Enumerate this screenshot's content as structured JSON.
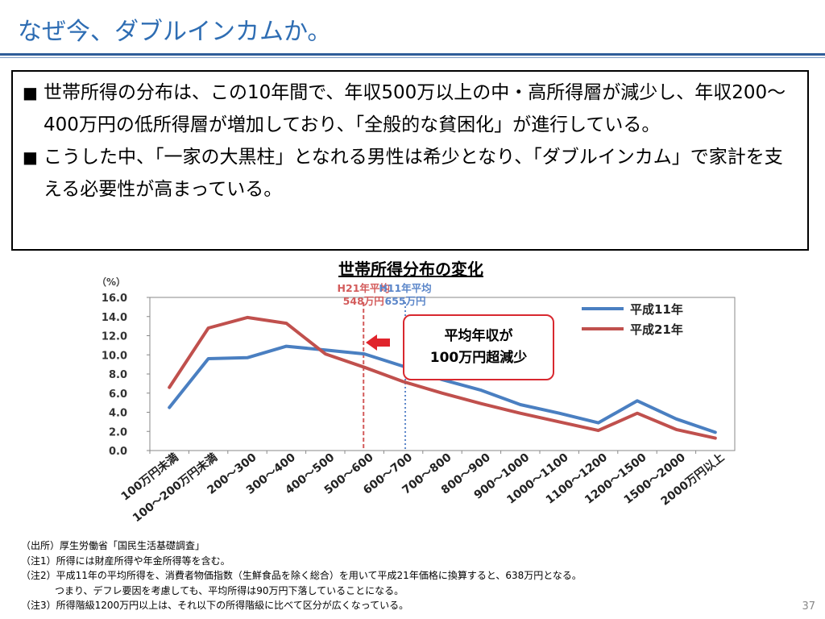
{
  "slide": {
    "title": "なぜ今、ダブルインカムか。",
    "page_number": "37",
    "bullet_mark": "■",
    "bullets": [
      "世帯所得の分布は、この10年間で、年収500万以上の中・高所得層が減少し、年収200～400万円の低所得層が増加しており、「全般的な貧困化」が進行している。",
      "こうした中、「一家の大黒柱」となれる男性は希少となり、「ダブルインカム」で家計を支える必要性が高まっている。"
    ],
    "callout": {
      "line1": "平均年収が",
      "line2": "100万円超減少"
    },
    "notes": [
      "（出所）厚生労働省「国民生活基礎調査」",
      "（注1）所得には財産所得や年金所得等を含む。",
      "（注2）平成11年の平均所得を、消費者物価指数（生鮮食品を除く総合）を用いて平成21年価格に換算すると、638万円となる。",
      "つまり、デフレ要因を考慮しても、平均所得は90万円下落していることになる。",
      "（注3）所得階級1200万円以上は、それ以下の所得階級に比べて区分が広くなっている。"
    ]
  },
  "chart_data": {
    "type": "line",
    "title": "世帯所得分布の変化",
    "ylabel": "（%）",
    "ylim": [
      0,
      16
    ],
    "yticks": [
      "0.0",
      "2.0",
      "4.0",
      "6.0",
      "8.0",
      "10.0",
      "12.0",
      "14.0",
      "16.0"
    ],
    "categories": [
      "100万円未満",
      "100～200万円未満",
      "200～300",
      "300～400",
      "400～500",
      "500～600",
      "600～700",
      "700～800",
      "800～900",
      "900～1000",
      "1000～1100",
      "1100～1200",
      "1200～1500",
      "1500～2000",
      "2000万円以上"
    ],
    "series": [
      {
        "name": "平成11年",
        "color": "#4a7fc1",
        "values": [
          4.5,
          9.6,
          9.7,
          10.9,
          10.5,
          10.1,
          8.8,
          7.4,
          6.3,
          4.8,
          3.9,
          2.9,
          5.2,
          3.3,
          1.9
        ]
      },
      {
        "name": "平成21年",
        "color": "#c0504d",
        "values": [
          6.6,
          12.8,
          13.9,
          13.3,
          10.1,
          8.7,
          7.2,
          6.0,
          4.9,
          3.9,
          3.0,
          2.1,
          3.9,
          2.2,
          1.3
        ]
      }
    ],
    "legend_position": "top-right",
    "reference_lines": [
      {
        "label1": "H21年平均",
        "label2": "548万円",
        "value": 548,
        "color": "#d35b5b",
        "style": "dashed"
      },
      {
        "label1": "H11年平均",
        "label2": "655万円",
        "value": 655,
        "color": "#5b86c9",
        "style": "dotted"
      }
    ],
    "arrow_color": "#e0242c"
  }
}
